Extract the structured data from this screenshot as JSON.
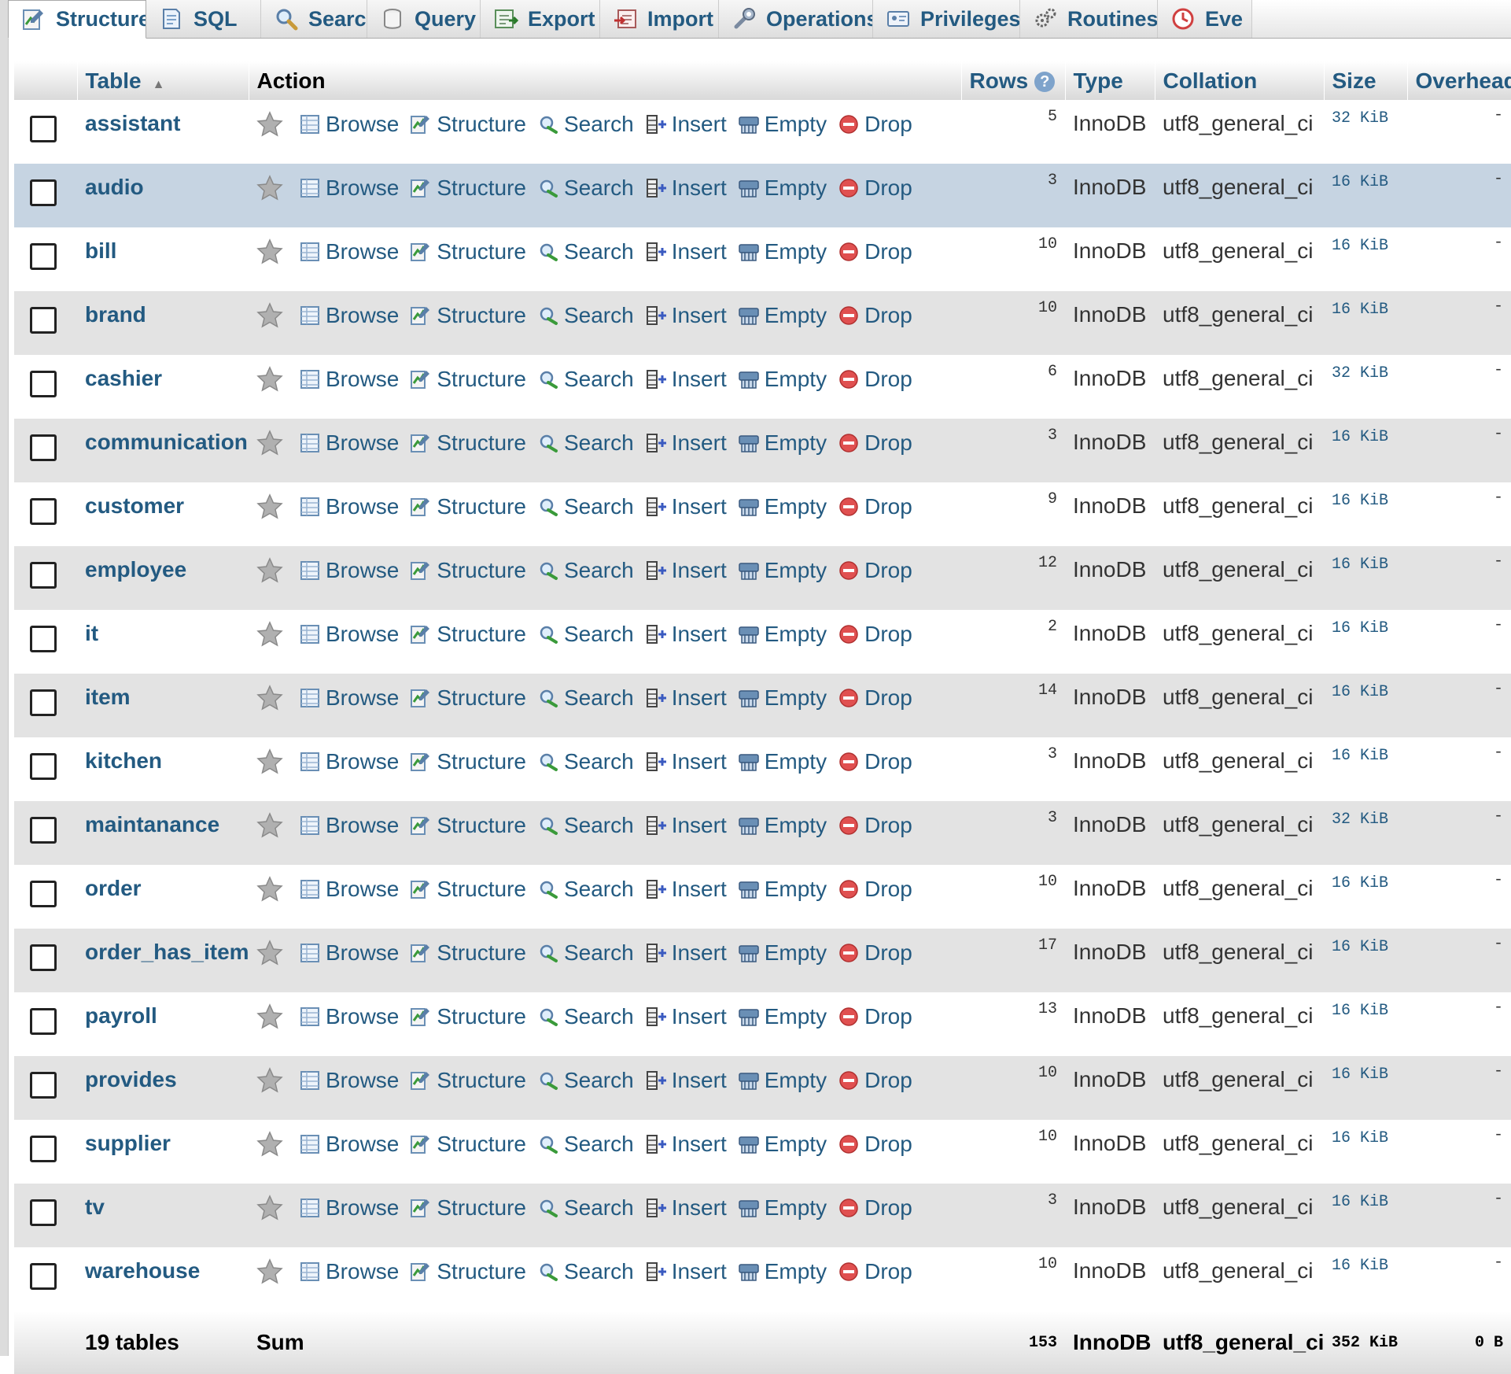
{
  "tabs": [
    {
      "label": "Structure",
      "icon": "structure-icon",
      "active": true
    },
    {
      "label": "SQL",
      "icon": "sql-icon"
    },
    {
      "label": "Search",
      "icon": "search-icon"
    },
    {
      "label": "Query",
      "icon": "query-icon"
    },
    {
      "label": "Export",
      "icon": "export-icon"
    },
    {
      "label": "Import",
      "icon": "import-icon"
    },
    {
      "label": "Operations",
      "icon": "operations-icon"
    },
    {
      "label": "Privileges",
      "icon": "privileges-icon"
    },
    {
      "label": "Routines",
      "icon": "routines-icon"
    },
    {
      "label": "Eve",
      "icon": "events-icon"
    }
  ],
  "headers": {
    "table": "Table",
    "action": "Action",
    "rows": "Rows",
    "type": "Type",
    "collation": "Collation",
    "size": "Size",
    "overhead": "Overhead"
  },
  "actions": {
    "browse": "Browse",
    "structure": "Structure",
    "search": "Search",
    "insert": "Insert",
    "empty": "Empty",
    "drop": "Drop"
  },
  "tables": [
    {
      "name": "assistant",
      "rows": "5",
      "type": "InnoDB",
      "collation": "utf8_general_ci",
      "size": "32 KiB",
      "overhead": "-"
    },
    {
      "name": "audio",
      "rows": "3",
      "type": "InnoDB",
      "collation": "utf8_general_ci",
      "size": "16 KiB",
      "overhead": "-"
    },
    {
      "name": "bill",
      "rows": "10",
      "type": "InnoDB",
      "collation": "utf8_general_ci",
      "size": "16 KiB",
      "overhead": "-"
    },
    {
      "name": "brand",
      "rows": "10",
      "type": "InnoDB",
      "collation": "utf8_general_ci",
      "size": "16 KiB",
      "overhead": "-"
    },
    {
      "name": "cashier",
      "rows": "6",
      "type": "InnoDB",
      "collation": "utf8_general_ci",
      "size": "32 KiB",
      "overhead": "-"
    },
    {
      "name": "communication",
      "rows": "3",
      "type": "InnoDB",
      "collation": "utf8_general_ci",
      "size": "16 KiB",
      "overhead": "-"
    },
    {
      "name": "customer",
      "rows": "9",
      "type": "InnoDB",
      "collation": "utf8_general_ci",
      "size": "16 KiB",
      "overhead": "-"
    },
    {
      "name": "employee",
      "rows": "12",
      "type": "InnoDB",
      "collation": "utf8_general_ci",
      "size": "16 KiB",
      "overhead": "-"
    },
    {
      "name": "it",
      "rows": "2",
      "type": "InnoDB",
      "collation": "utf8_general_ci",
      "size": "16 KiB",
      "overhead": "-"
    },
    {
      "name": "item",
      "rows": "14",
      "type": "InnoDB",
      "collation": "utf8_general_ci",
      "size": "16 KiB",
      "overhead": "-"
    },
    {
      "name": "kitchen",
      "rows": "3",
      "type": "InnoDB",
      "collation": "utf8_general_ci",
      "size": "16 KiB",
      "overhead": "-"
    },
    {
      "name": "maintanance",
      "rows": "3",
      "type": "InnoDB",
      "collation": "utf8_general_ci",
      "size": "32 KiB",
      "overhead": "-"
    },
    {
      "name": "order",
      "rows": "10",
      "type": "InnoDB",
      "collation": "utf8_general_ci",
      "size": "16 KiB",
      "overhead": "-"
    },
    {
      "name": "order_has_item",
      "rows": "17",
      "type": "InnoDB",
      "collation": "utf8_general_ci",
      "size": "16 KiB",
      "overhead": "-"
    },
    {
      "name": "payroll",
      "rows": "13",
      "type": "InnoDB",
      "collation": "utf8_general_ci",
      "size": "16 KiB",
      "overhead": "-"
    },
    {
      "name": "provides",
      "rows": "10",
      "type": "InnoDB",
      "collation": "utf8_general_ci",
      "size": "16 KiB",
      "overhead": "-"
    },
    {
      "name": "supplier",
      "rows": "10",
      "type": "InnoDB",
      "collation": "utf8_general_ci",
      "size": "16 KiB",
      "overhead": "-"
    },
    {
      "name": "tv",
      "rows": "3",
      "type": "InnoDB",
      "collation": "utf8_general_ci",
      "size": "16 KiB",
      "overhead": "-"
    },
    {
      "name": "warehouse",
      "rows": "10",
      "type": "InnoDB",
      "collation": "utf8_general_ci",
      "size": "16 KiB",
      "overhead": "-"
    }
  ],
  "hover_row_index": 1,
  "footer": {
    "count": "19 tables",
    "sum": "Sum",
    "rows": "153",
    "type": "InnoDB",
    "collation": "utf8_general_ci",
    "size": "352 KiB",
    "overhead": "0 B"
  },
  "colors": {
    "link": "#235a81",
    "row_alt": "#e3e3e3",
    "row_hover": "#c6d4e2",
    "drop_icon": "#e05050",
    "favorite_star": "#b0b0b0"
  }
}
